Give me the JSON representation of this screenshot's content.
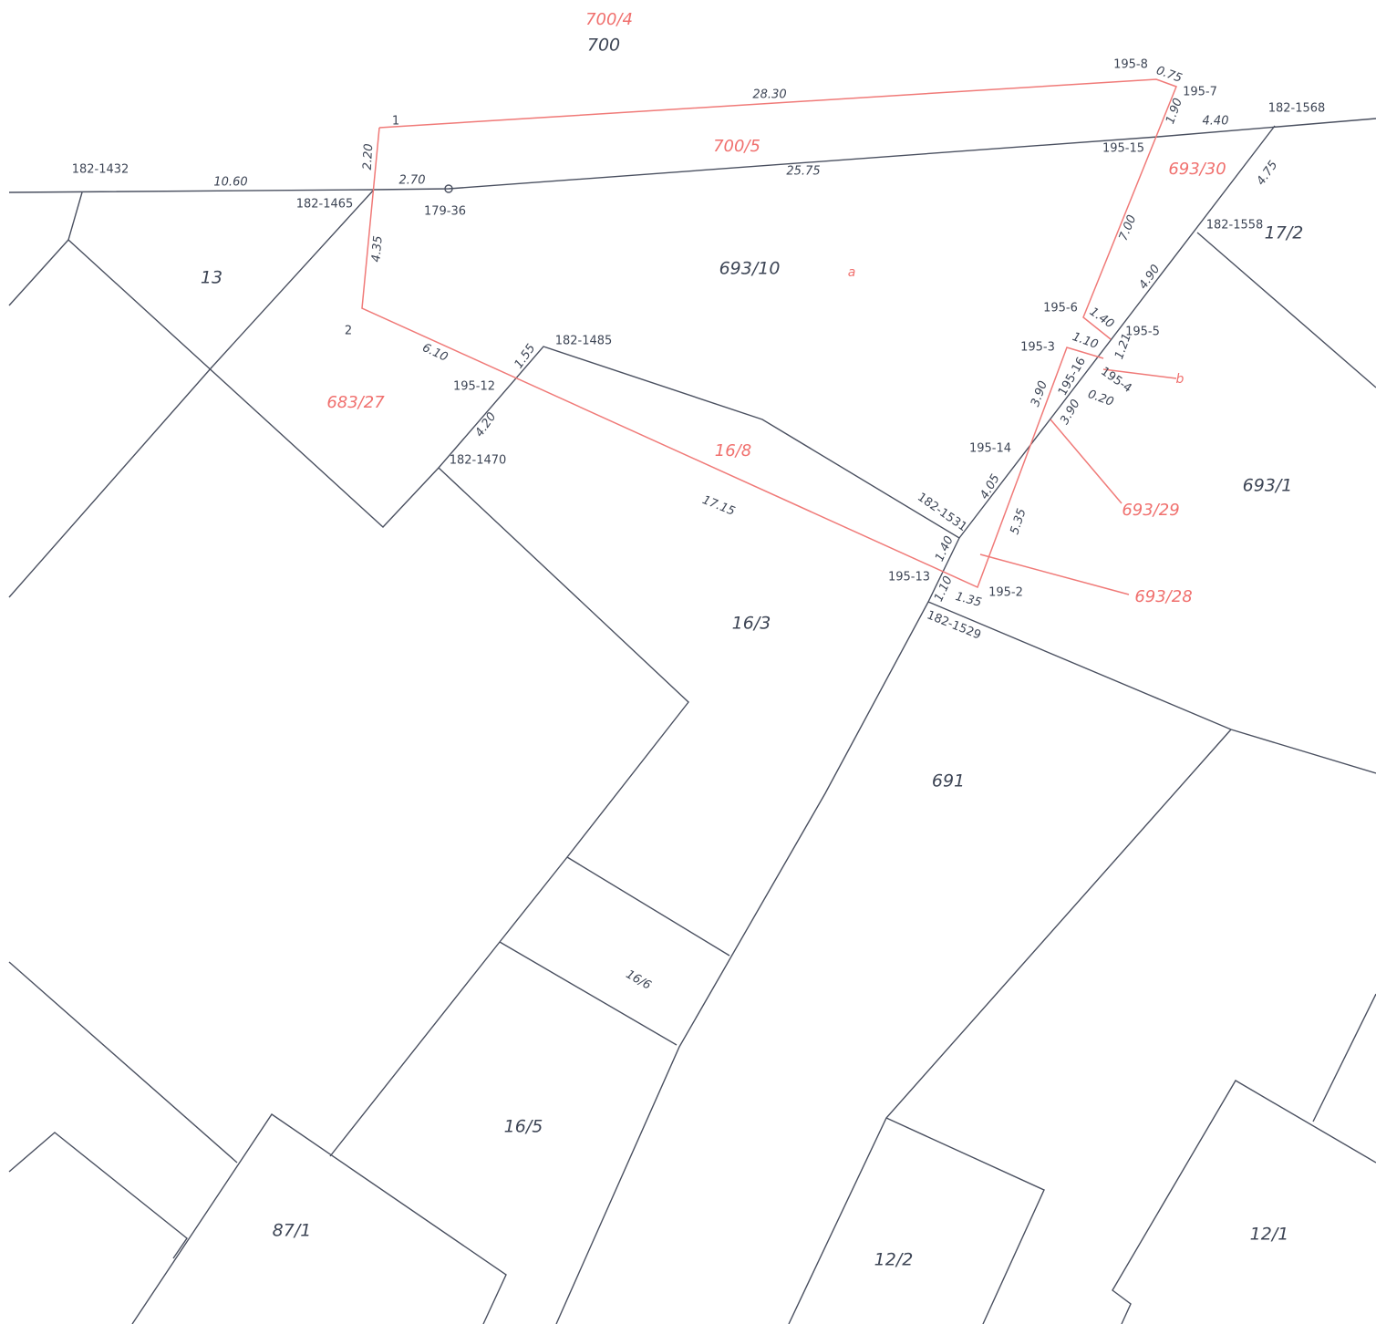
{
  "parcels": [
    "700",
    "13",
    "693/10",
    "16/3",
    "691",
    "16/5",
    "87/1",
    "12/2",
    "12/1",
    "693/1",
    "17/2",
    "16/6"
  ],
  "new_parcels": [
    "700/4",
    "700/5",
    "693/30",
    "683/27",
    "16/8",
    "693/29",
    "693/28",
    "a",
    "b"
  ],
  "points": [
    "182-1432",
    "182-1465",
    "179-36",
    "182-1485",
    "195-12",
    "182-1470",
    "195-8",
    "195-7",
    "182-1568",
    "195-15",
    "182-1558",
    "195-6",
    "195-5",
    "195-3",
    "195-4",
    "195-16",
    "195-14",
    "182-1531",
    "195-13",
    "195-2",
    "182-1529",
    "1",
    "2"
  ],
  "measurements": [
    "28.30",
    "0.75",
    "1.90",
    "4.40",
    "2.20",
    "10.60",
    "2.70",
    "25.75",
    "4.75",
    "7.00",
    "4.35",
    "4.90",
    "1.40",
    "1.10",
    "1.21",
    "0.20",
    "6.10",
    "1.55",
    "4.20",
    "3.90",
    "3.90",
    "4.05",
    "5.35",
    "17.15",
    "1.40",
    "1.10",
    "1.35"
  ]
}
